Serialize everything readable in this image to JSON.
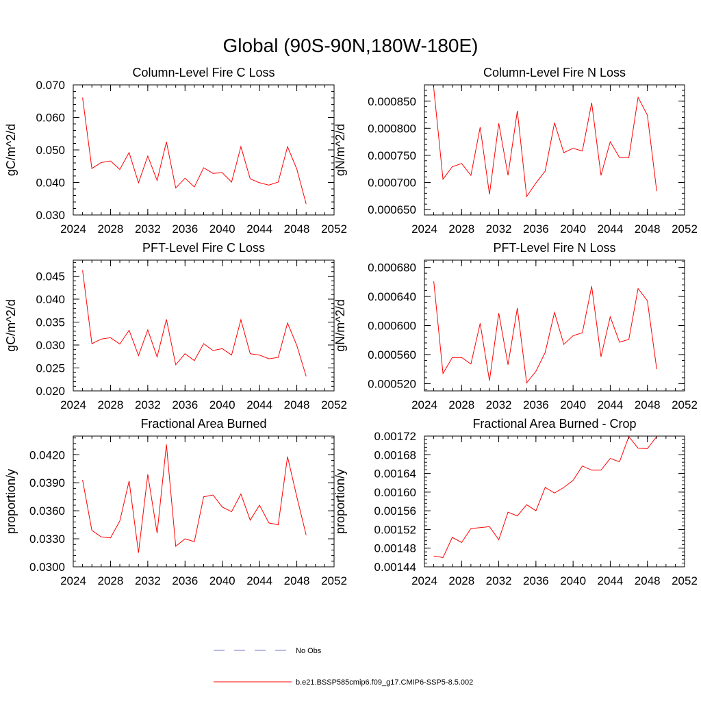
{
  "figure": {
    "title": "Global (90S-90N,180W-180E)",
    "legend": [
      {
        "label": "No Obs",
        "style": "dashed",
        "color": "#7777cc"
      },
      {
        "label": "b.e21.BSSP585cmip6.f09_g17.CMIP6-SSP5-8.5.002",
        "style": "solid",
        "color": "#ff0000"
      }
    ]
  },
  "chart_data": [
    {
      "type": "line",
      "title": "Column-Level Fire C Loss",
      "ylabel": "gC/m^2/d",
      "xlim": [
        2024,
        2052
      ],
      "xticks": [
        "2024",
        "2028",
        "2032",
        "2036",
        "2040",
        "2044",
        "2048",
        "2052"
      ],
      "ylim": [
        0.03,
        0.07
      ],
      "yticks": [
        "0.030",
        "0.040",
        "0.050",
        "0.060",
        "0.070"
      ],
      "series": [
        {
          "name": "b.e21.BSSP585cmip6.f09_g17.CMIP6-SSP5-8.5.002",
          "color": "#ff0000",
          "x": [
            2025,
            2026,
            2027,
            2028,
            2029,
            2030,
            2031,
            2032,
            2033,
            2034,
            2035,
            2036,
            2037,
            2038,
            2039,
            2040,
            2041,
            2042,
            2043,
            2044,
            2045,
            2046,
            2047,
            2048,
            2049
          ],
          "y": [
            0.0661,
            0.0443,
            0.0461,
            0.0466,
            0.044,
            0.0492,
            0.0399,
            0.0481,
            0.0406,
            0.0525,
            0.0383,
            0.0413,
            0.0386,
            0.0445,
            0.0428,
            0.043,
            0.0401,
            0.051,
            0.0411,
            0.0399,
            0.0392,
            0.0401,
            0.051,
            0.0441,
            0.0334
          ]
        }
      ]
    },
    {
      "type": "line",
      "title": "Column-Level Fire N Loss",
      "ylabel": "gN/m^2/d",
      "xlim": [
        2024,
        2052
      ],
      "xticks": [
        "2024",
        "2028",
        "2032",
        "2036",
        "2040",
        "2044",
        "2048",
        "2052"
      ],
      "ylim": [
        0.00064,
        0.00088
      ],
      "yticks": [
        "0.000650",
        "0.000700",
        "0.000750",
        "0.000800",
        "0.000850"
      ],
      "series": [
        {
          "name": "b.e21.BSSP585cmip6.f09_g17.CMIP6-SSP5-8.5.002",
          "color": "#ff0000",
          "x": [
            2025,
            2026,
            2027,
            2028,
            2029,
            2030,
            2031,
            2032,
            2033,
            2034,
            2035,
            2036,
            2037,
            2038,
            2039,
            2040,
            2041,
            2042,
            2043,
            2044,
            2045,
            2046,
            2047,
            2048,
            2049
          ],
          "y": [
            0.000874,
            0.000706,
            0.000729,
            0.000735,
            0.000713,
            0.000802,
            0.000678,
            0.000809,
            0.000713,
            0.000832,
            0.000674,
            0.000699,
            0.000721,
            0.00081,
            0.000755,
            0.000763,
            0.000758,
            0.000847,
            0.000713,
            0.000775,
            0.000746,
            0.000746,
            0.000857,
            0.000824,
            0.000684
          ]
        }
      ]
    },
    {
      "type": "line",
      "title": "PFT-Level Fire C Loss",
      "ylabel": "gC/m^2/d",
      "xlim": [
        2024,
        2052
      ],
      "xticks": [
        "2024",
        "2028",
        "2032",
        "2036",
        "2040",
        "2044",
        "2048",
        "2052"
      ],
      "ylim": [
        0.02,
        0.0485
      ],
      "yticks": [
        "0.020",
        "0.025",
        "0.030",
        "0.035",
        "0.040",
        "0.045"
      ],
      "series": [
        {
          "name": "b.e21.BSSP585cmip6.f09_g17.CMIP6-SSP5-8.5.002",
          "color": "#ff0000",
          "x": [
            2025,
            2026,
            2027,
            2028,
            2029,
            2030,
            2031,
            2032,
            2033,
            2034,
            2035,
            2036,
            2037,
            2038,
            2039,
            2040,
            2041,
            2042,
            2043,
            2044,
            2045,
            2046,
            2047,
            2048,
            2049
          ],
          "y": [
            0.0463,
            0.0303,
            0.0313,
            0.0316,
            0.0302,
            0.0332,
            0.0277,
            0.0333,
            0.0274,
            0.0356,
            0.0257,
            0.0281,
            0.0266,
            0.0303,
            0.0288,
            0.0292,
            0.0278,
            0.0355,
            0.0281,
            0.0278,
            0.027,
            0.0273,
            0.0348,
            0.0299,
            0.0232
          ]
        }
      ]
    },
    {
      "type": "line",
      "title": "PFT-Level Fire N Loss",
      "ylabel": "gN/m^2/d",
      "xlim": [
        2024,
        2052
      ],
      "xticks": [
        "2024",
        "2028",
        "2032",
        "2036",
        "2040",
        "2044",
        "2048",
        "2052"
      ],
      "ylim": [
        0.00051,
        0.00069
      ],
      "yticks": [
        "0.000520",
        "0.000560",
        "0.000600",
        "0.000640",
        "0.000680"
      ],
      "series": [
        {
          "name": "b.e21.BSSP585cmip6.f09_g17.CMIP6-SSP5-8.5.002",
          "color": "#ff0000",
          "x": [
            2025,
            2026,
            2027,
            2028,
            2029,
            2030,
            2031,
            2032,
            2033,
            2034,
            2035,
            2036,
            2037,
            2038,
            2039,
            2040,
            2041,
            2042,
            2043,
            2044,
            2045,
            2046,
            2047,
            2048,
            2049
          ],
          "y": [
            0.000661,
            0.000534,
            0.000556,
            0.000556,
            0.000547,
            0.000603,
            0.000524,
            0.000617,
            0.000546,
            0.000624,
            0.000521,
            0.000537,
            0.000563,
            0.000618,
            0.000574,
            0.000586,
            0.00059,
            0.000654,
            0.000557,
            0.000612,
            0.000577,
            0.000581,
            0.000651,
            0.000634,
            0.00054
          ]
        }
      ]
    },
    {
      "type": "line",
      "title": "Fractional Area Burned",
      "ylabel": "proportion/y",
      "xlim": [
        2024,
        2052
      ],
      "xticks": [
        "2024",
        "2028",
        "2032",
        "2036",
        "2040",
        "2044",
        "2048",
        "2052"
      ],
      "ylim": [
        0.03,
        0.044
      ],
      "yticks": [
        "0.0300",
        "0.0330",
        "0.0360",
        "0.0390",
        "0.0420"
      ],
      "series": [
        {
          "name": "b.e21.BSSP585cmip6.f09_g17.CMIP6-SSP5-8.5.002",
          "color": "#ff0000",
          "x": [
            2025,
            2026,
            2027,
            2028,
            2029,
            2030,
            2031,
            2032,
            2033,
            2034,
            2035,
            2036,
            2037,
            2038,
            2039,
            2040,
            2041,
            2042,
            2043,
            2044,
            2045,
            2046,
            2047,
            2048,
            2049
          ],
          "y": [
            0.0393,
            0.0339,
            0.0332,
            0.0331,
            0.0349,
            0.0392,
            0.0315,
            0.0399,
            0.0336,
            0.0431,
            0.0322,
            0.033,
            0.0327,
            0.0375,
            0.0377,
            0.0364,
            0.0359,
            0.0378,
            0.035,
            0.0366,
            0.0347,
            0.0345,
            0.0418,
            0.0375,
            0.0334
          ]
        }
      ]
    },
    {
      "type": "line",
      "title": "Fractional Area Burned - Crop",
      "ylabel": "proportion/y",
      "xlim": [
        2024,
        2052
      ],
      "xticks": [
        "2024",
        "2028",
        "2032",
        "2036",
        "2040",
        "2044",
        "2048",
        "2052"
      ],
      "ylim": [
        0.00144,
        0.00172
      ],
      "yticks": [
        "0.00144",
        "0.00148",
        "0.00152",
        "0.00156",
        "0.00160",
        "0.00164",
        "0.00168",
        "0.00172"
      ],
      "series": [
        {
          "name": "b.e21.BSSP585cmip6.f09_g17.CMIP6-SSP5-8.5.002",
          "color": "#ff0000",
          "x": [
            2025,
            2026,
            2027,
            2028,
            2029,
            2030,
            2031,
            2032,
            2033,
            2034,
            2035,
            2036,
            2037,
            2038,
            2039,
            2040,
            2041,
            2042,
            2043,
            2044,
            2045,
            2046,
            2047,
            2048,
            2049
          ],
          "y": [
            0.001463,
            0.00146,
            0.001503,
            0.001492,
            0.001522,
            0.001524,
            0.001526,
            0.001498,
            0.001557,
            0.001549,
            0.001573,
            0.00156,
            0.00161,
            0.001598,
            0.00161,
            0.001625,
            0.001656,
            0.001647,
            0.001647,
            0.001672,
            0.001665,
            0.001719,
            0.001694,
            0.001693,
            0.001719
          ]
        }
      ]
    }
  ]
}
